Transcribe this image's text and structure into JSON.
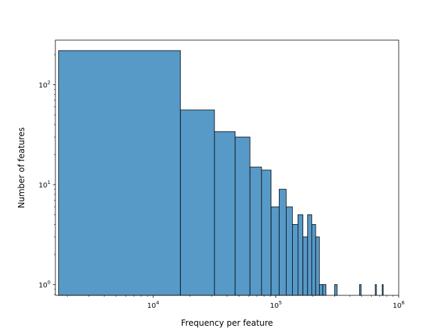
{
  "chart_data": {
    "type": "bar",
    "subtype": "histogram",
    "xlabel": "Frequency per feature",
    "ylabel": "Number of features",
    "xscale": "log",
    "yscale": "log",
    "xlim": [
      1600,
      1000000
    ],
    "ylim": [
      0.78,
      280
    ],
    "bar_color": "#5799c7",
    "grid": false,
    "legend": "none",
    "xticks": [
      {
        "value": 10000,
        "base": "10",
        "exp": "4"
      },
      {
        "value": 100000,
        "base": "10",
        "exp": "5"
      },
      {
        "value": 1000000,
        "base": "10",
        "exp": "6"
      }
    ],
    "yticks": [
      {
        "value": 1,
        "base": "10",
        "exp": "0"
      },
      {
        "value": 10,
        "base": "10",
        "exp": "1"
      },
      {
        "value": 100,
        "base": "10",
        "exp": "2"
      }
    ],
    "bins": [
      {
        "x0": 1700,
        "x1": 16700,
        "count": 220
      },
      {
        "x0": 16700,
        "x1": 31600,
        "count": 56
      },
      {
        "x0": 31600,
        "x1": 46600,
        "count": 34
      },
      {
        "x0": 46600,
        "x1": 61500,
        "count": 30
      },
      {
        "x0": 61500,
        "x1": 76400,
        "count": 15
      },
      {
        "x0": 76400,
        "x1": 91400,
        "count": 14
      },
      {
        "x0": 91400,
        "x1": 106300,
        "count": 6
      },
      {
        "x0": 106300,
        "x1": 121200,
        "count": 9
      },
      {
        "x0": 121200,
        "x1": 136200,
        "count": 6
      },
      {
        "x0": 136200,
        "x1": 151100,
        "count": 4
      },
      {
        "x0": 151100,
        "x1": 166000,
        "count": 5
      },
      {
        "x0": 166000,
        "x1": 181000,
        "count": 3
      },
      {
        "x0": 181000,
        "x1": 195900,
        "count": 5
      },
      {
        "x0": 195900,
        "x1": 210800,
        "count": 4
      },
      {
        "x0": 210800,
        "x1": 225800,
        "count": 3
      },
      {
        "x0": 225800,
        "x1": 240700,
        "count": 1
      },
      {
        "x0": 240700,
        "x1": 255600,
        "count": 1
      },
      {
        "x0": 300400,
        "x1": 315300,
        "count": 1
      },
      {
        "x0": 479600,
        "x1": 494600,
        "count": 1
      },
      {
        "x0": 643900,
        "x1": 658800,
        "count": 1
      },
      {
        "x0": 733500,
        "x1": 748400,
        "count": 1
      }
    ]
  }
}
